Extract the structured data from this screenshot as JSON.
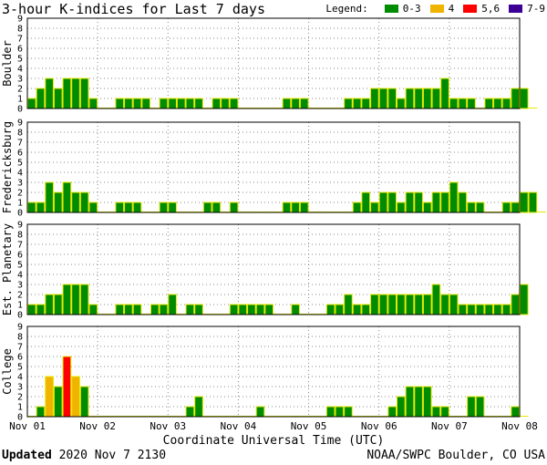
{
  "title": "3-hour K-indices for Last 7 days",
  "legend": {
    "label": "Legend:",
    "items": [
      {
        "label": "0-3",
        "color": "#008c00"
      },
      {
        "label": "4",
        "color": "#f0b400"
      },
      {
        "label": "5,6",
        "color": "#ff0000"
      },
      {
        "label": "7-9",
        "color": "#3c0096"
      }
    ]
  },
  "chart_data": {
    "type": "bar",
    "y_ticks": [
      "0",
      "1",
      "2",
      "3",
      "4",
      "5",
      "6",
      "7",
      "8",
      "9"
    ],
    "ylim": [
      0,
      9
    ],
    "x_ticks": [
      "Nov 01",
      "Nov 02",
      "Nov 03",
      "Nov 04",
      "Nov 05",
      "Nov 06",
      "Nov 07",
      "Nov 08"
    ],
    "xlabel": "Coordinate Universal Time (UTC)",
    "bar_outline_color": "#e6e600",
    "series": [
      {
        "name": "Boulder",
        "values": [
          1,
          2,
          3,
          2,
          3,
          3,
          3,
          1,
          0,
          0,
          1,
          1,
          1,
          1,
          0,
          1,
          1,
          1,
          1,
          1,
          0,
          1,
          1,
          1,
          0,
          0,
          0,
          0,
          0,
          1,
          1,
          1,
          0,
          0,
          0,
          0,
          1,
          1,
          1,
          2,
          2,
          2,
          1,
          2,
          2,
          2,
          2,
          3,
          1,
          1,
          1,
          0,
          1,
          1,
          1,
          2,
          2,
          0
        ]
      },
      {
        "name": "Fredericksburg",
        "values": [
          1,
          1,
          3,
          2,
          3,
          2,
          2,
          1,
          0,
          0,
          1,
          1,
          1,
          0,
          0,
          1,
          1,
          0,
          0,
          0,
          1,
          1,
          0,
          1,
          0,
          0,
          0,
          0,
          0,
          1,
          1,
          1,
          0,
          0,
          0,
          0,
          0,
          1,
          2,
          1,
          2,
          2,
          1,
          2,
          2,
          1,
          2,
          2,
          3,
          2,
          1,
          1,
          0,
          0,
          1,
          1,
          2,
          2,
          0
        ]
      },
      {
        "name": "Est. Planetary",
        "values": [
          1,
          1,
          2,
          2,
          3,
          3,
          3,
          1,
          0,
          0,
          1,
          1,
          1,
          0,
          1,
          1,
          2,
          0,
          1,
          1,
          0,
          0,
          0,
          1,
          1,
          1,
          1,
          1,
          0,
          0,
          1,
          0,
          0,
          0,
          1,
          1,
          2,
          1,
          1,
          2,
          2,
          2,
          2,
          2,
          2,
          2,
          3,
          2,
          2,
          1,
          1,
          1,
          1,
          1,
          1,
          2,
          3
        ]
      },
      {
        "name": "College",
        "values": [
          0,
          1,
          4,
          3,
          6,
          4,
          3,
          0,
          0,
          0,
          0,
          0,
          0,
          0,
          0,
          0,
          0,
          0,
          1,
          2,
          0,
          0,
          0,
          0,
          0,
          0,
          1,
          0,
          0,
          0,
          0,
          0,
          0,
          0,
          1,
          1,
          1,
          0,
          0,
          0,
          0,
          1,
          2,
          3,
          3,
          3,
          1,
          1,
          0,
          0,
          2,
          2,
          0,
          0,
          0,
          1,
          0
        ]
      }
    ]
  },
  "footer": {
    "updated_label": "Updated",
    "updated_value": " 2020 Nov  7 2130",
    "source": "NOAA/SWPC Boulder, CO USA"
  }
}
